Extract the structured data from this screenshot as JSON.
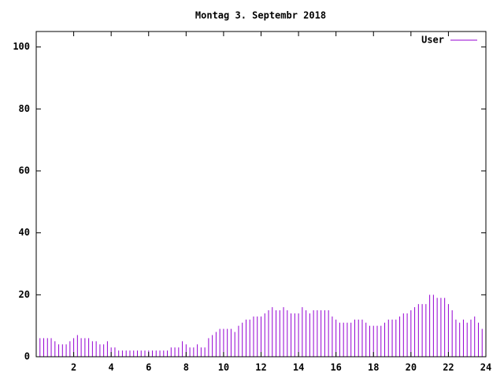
{
  "chart_data": {
    "type": "impulse",
    "title": "Montag 3. Septembr 2018",
    "series": [
      {
        "name": "User",
        "color": "#9400d3",
        "x": [
          0,
          0.2,
          0.4,
          0.6,
          0.8,
          1,
          1.2,
          1.4,
          1.6,
          1.8,
          2,
          2.2,
          2.4,
          2.6,
          2.8,
          3,
          3.2,
          3.4,
          3.6,
          3.8,
          4,
          4.2,
          4.4,
          4.6,
          4.8,
          5,
          5.2,
          5.4,
          5.6,
          5.8,
          6,
          6.2,
          6.4,
          6.6,
          6.8,
          7,
          7.2,
          7.4,
          7.6,
          7.8,
          8,
          8.2,
          8.4,
          8.6,
          8.8,
          9,
          9.2,
          9.4,
          9.6,
          9.8,
          10,
          10.2,
          10.4,
          10.6,
          10.8,
          11,
          11.2,
          11.4,
          11.6,
          11.8,
          12,
          12.2,
          12.4,
          12.6,
          12.8,
          13,
          13.2,
          13.4,
          13.6,
          13.8,
          14,
          14.2,
          14.4,
          14.6,
          14.8,
          15,
          15.2,
          15.4,
          15.6,
          15.8,
          16,
          16.2,
          16.4,
          16.6,
          16.8,
          17,
          17.2,
          17.4,
          17.6,
          17.8,
          18,
          18.2,
          18.4,
          18.6,
          18.8,
          19,
          19.2,
          19.4,
          19.6,
          19.8,
          20,
          20.2,
          20.4,
          20.6,
          20.8,
          21,
          21.2,
          21.4,
          21.6,
          21.8,
          22,
          22.2,
          22.4,
          22.6,
          22.8,
          23,
          23.2,
          23.4,
          23.6,
          23.8,
          24
        ],
        "values": [
          6,
          6,
          6,
          6,
          6,
          5,
          4,
          4,
          4,
          5,
          6,
          7,
          6,
          6,
          6,
          5,
          5,
          4,
          4,
          5,
          3,
          3,
          2,
          2,
          2,
          2,
          2,
          2,
          2,
          2,
          2,
          2,
          2,
          2,
          2,
          2,
          3,
          3,
          3,
          5,
          4,
          3,
          3,
          4,
          3,
          3,
          6,
          7,
          8,
          9,
          9,
          9,
          9,
          8,
          10,
          11,
          12,
          12,
          13,
          13,
          13,
          14,
          15,
          16,
          15,
          15,
          16,
          15,
          14,
          14,
          14,
          16,
          15,
          14,
          15,
          15,
          15,
          15,
          15,
          13,
          12,
          11,
          11,
          11,
          11,
          12,
          12,
          12,
          11,
          10,
          10,
          10,
          10,
          11,
          12,
          12,
          12,
          13,
          14,
          14,
          15,
          16,
          17,
          17,
          17,
          20,
          20,
          19,
          19,
          19,
          17,
          15,
          12,
          11,
          12,
          11,
          12,
          13,
          11,
          9,
          8
        ]
      }
    ],
    "xlim": [
      0,
      24
    ],
    "xticks": [
      2,
      4,
      6,
      8,
      10,
      12,
      14,
      16,
      18,
      20,
      22,
      24
    ],
    "ylim": [
      0,
      105
    ],
    "yticks": [
      0,
      20,
      40,
      60,
      80,
      100
    ],
    "legend": "top-right"
  }
}
